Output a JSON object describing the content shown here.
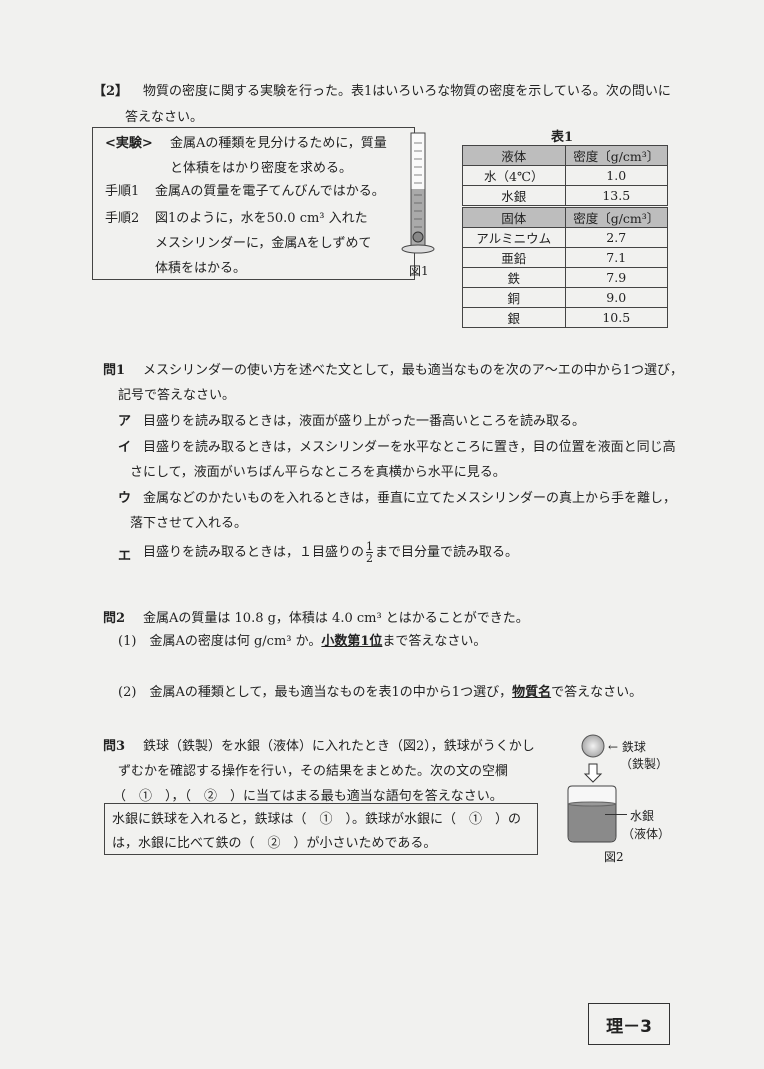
{
  "header": {
    "number": "【2】",
    "intro1": "物質の密度に関する実験を行った。表1はいろいろな物質の密度を示している。次の問いに",
    "intro2": "答えなさい。"
  },
  "experiment": {
    "label": "<実験>",
    "line1": "金属Aの種類を見分けるために，質量",
    "line2": "と体積をはかり密度を求める。",
    "step1_label": "手順1",
    "step1": "金属Aの質量を電子てんびんではかる。",
    "step2_label": "手順2",
    "step2a": "図1のように，水を50.0 cm³ 入れた",
    "step2b": "メスシリンダーに，金属Aをしずめて",
    "step2c": "体積をはかる。",
    "figure_label": "図1"
  },
  "table1": {
    "caption": "表1",
    "liquid_header": [
      "液体",
      "密度〔g/cm³〕"
    ],
    "liquids": [
      [
        "水（4℃）",
        "1.0"
      ],
      [
        "水銀",
        "13.5"
      ]
    ],
    "solid_header": [
      "固体",
      "密度〔g/cm³〕"
    ],
    "solids": [
      [
        "アルミニウム",
        "2.7"
      ],
      [
        "亜鉛",
        "7.1"
      ],
      [
        "鉄",
        "7.9"
      ],
      [
        "銅",
        "9.0"
      ],
      [
        "銀",
        "10.5"
      ]
    ]
  },
  "q1": {
    "label": "問1",
    "text1": "メスシリンダーの使い方を述べた文として，最も適当なものを次のア～エの中から1つ選び，",
    "text2": "記号で答えなさい。",
    "options": [
      {
        "mark": "ア",
        "text": "目盛りを読み取るときは，液面が盛り上がった一番高いところを読み取る。"
      },
      {
        "mark": "イ",
        "text": "目盛りを読み取るときは，メスシリンダーを水平なところに置き，目の位置を液面と同じ高",
        "text2": "さにして，液面がいちばん平らなところを真横から水平に見る。"
      },
      {
        "mark": "ウ",
        "text": "金属などのかたいものを入れるときは，垂直に立てたメスシリンダーの真上から手を離し，",
        "text2": "落下させて入れる。"
      },
      {
        "mark": "エ",
        "text": "目盛りを読み取るときは，１目盛りの",
        "frac_num": "1",
        "frac_den": "2",
        "text2": "まで目分量で読み取る。"
      }
    ]
  },
  "q2": {
    "label": "問2",
    "text": "金属Aの質量は 10.8 g，体積は 4.0 cm³ とはかることができた。",
    "sub1_num": "(1)",
    "sub1a": "金属Aの密度は何 g/cm³ か。",
    "sub1_u": "小数第1位",
    "sub1b": "まで答えなさい。",
    "sub2_num": "(2)",
    "sub2a": "金属Aの種類として，最も適当なものを表1の中から1つ選び，",
    "sub2_u": "物質名",
    "sub2b": "で答えなさい。"
  },
  "q3": {
    "label": "問3",
    "text1": "鉄球（鉄製）を水銀（液体）に入れたとき（図2），鉄球がうくかし",
    "text2": "ずむかを確認する操作を行い，その結果をまとめた。次の文の空欄",
    "text3": "（　①　），（　②　）に当てはまる最も適当な語句を答えなさい。",
    "box1": "水銀に鉄球を入れると，鉄球は（　①　）。鉄球が水銀に（　①　）の",
    "box2": "は，水銀に比べて鉄の（　②　）が小さいためである。",
    "fig_ball_label1": "← 鉄球",
    "fig_ball_label2": "（鉄製）",
    "fig_liquid_label1": "水銀",
    "fig_liquid_label2": "（液体）",
    "figure_label": "図2"
  },
  "footer": {
    "page": "理－3"
  }
}
